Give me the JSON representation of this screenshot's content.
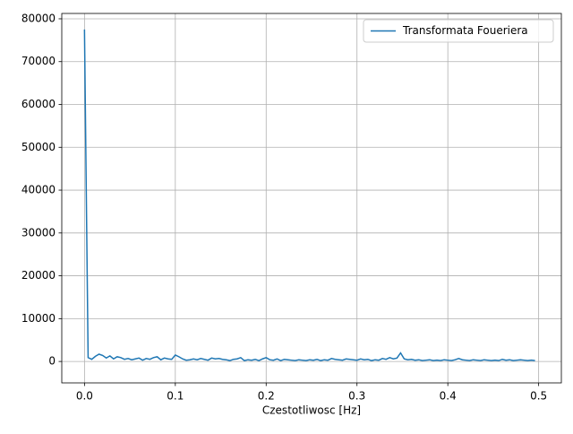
{
  "chart_data": {
    "type": "line",
    "xlabel": "Czestotliwosc [Hz]",
    "x": [
      0,
      0.004,
      0.008,
      0.012,
      0.016,
      0.02,
      0.024,
      0.028,
      0.032,
      0.036,
      0.04,
      0.044,
      0.048,
      0.052,
      0.056,
      0.06,
      0.064,
      0.068,
      0.072,
      0.076,
      0.08,
      0.084,
      0.088,
      0.092,
      0.096,
      0.1,
      0.104,
      0.108,
      0.112,
      0.116,
      0.12,
      0.124,
      0.128,
      0.132,
      0.136,
      0.14,
      0.144,
      0.148,
      0.152,
      0.156,
      0.16,
      0.164,
      0.168,
      0.172,
      0.176,
      0.18,
      0.184,
      0.188,
      0.192,
      0.196,
      0.2,
      0.204,
      0.208,
      0.212,
      0.216,
      0.22,
      0.224,
      0.228,
      0.232,
      0.236,
      0.24,
      0.244,
      0.248,
      0.252,
      0.256,
      0.26,
      0.264,
      0.268,
      0.272,
      0.276,
      0.28,
      0.284,
      0.288,
      0.292,
      0.296,
      0.3,
      0.304,
      0.308,
      0.312,
      0.316,
      0.32,
      0.324,
      0.328,
      0.332,
      0.336,
      0.34,
      0.344,
      0.348,
      0.352,
      0.356,
      0.36,
      0.364,
      0.368,
      0.372,
      0.376,
      0.38,
      0.384,
      0.388,
      0.392,
      0.396,
      0.4,
      0.404,
      0.408,
      0.412,
      0.416,
      0.42,
      0.424,
      0.428,
      0.432,
      0.436,
      0.44,
      0.444,
      0.448,
      0.452,
      0.456,
      0.46,
      0.464,
      0.468,
      0.472,
      0.476,
      0.48,
      0.484,
      0.488,
      0.492,
      0.496
    ],
    "series": [
      {
        "name": "Transformata Foueriera",
        "color": "#1f77b4",
        "values": [
          77500,
          900,
          500,
          1200,
          1700,
          1400,
          800,
          1300,
          600,
          1100,
          900,
          500,
          700,
          400,
          600,
          800,
          300,
          700,
          500,
          900,
          1100,
          400,
          800,
          600,
          500,
          1500,
          1100,
          600,
          300,
          400,
          600,
          400,
          700,
          500,
          300,
          800,
          600,
          700,
          500,
          400,
          200,
          500,
          600,
          900,
          200,
          400,
          300,
          500,
          200,
          600,
          900,
          400,
          300,
          600,
          200,
          500,
          400,
          300,
          200,
          400,
          300,
          200,
          400,
          300,
          500,
          200,
          400,
          300,
          700,
          500,
          400,
          300,
          600,
          500,
          400,
          300,
          600,
          400,
          500,
          200,
          400,
          300,
          700,
          500,
          900,
          600,
          800,
          2000,
          600,
          400,
          500,
          300,
          400,
          200,
          300,
          400,
          200,
          300,
          200,
          400,
          300,
          200,
          400,
          700,
          400,
          300,
          200,
          400,
          300,
          200,
          400,
          300,
          200,
          300,
          200,
          500,
          300,
          400,
          200,
          300,
          400,
          300,
          200,
          300,
          200
        ]
      }
    ],
    "xlim": [
      -0.025,
      0.525
    ],
    "ylim": [
      -5000,
      81250
    ],
    "xticks": [
      {
        "value": 0,
        "label": "0.0"
      },
      0.1,
      0.2,
      0.3,
      0.4,
      0.5
    ],
    "yticks": [
      0,
      10000,
      20000,
      30000,
      40000,
      50000,
      60000,
      70000,
      80000
    ],
    "grid": true,
    "legend": "upper-right"
  }
}
